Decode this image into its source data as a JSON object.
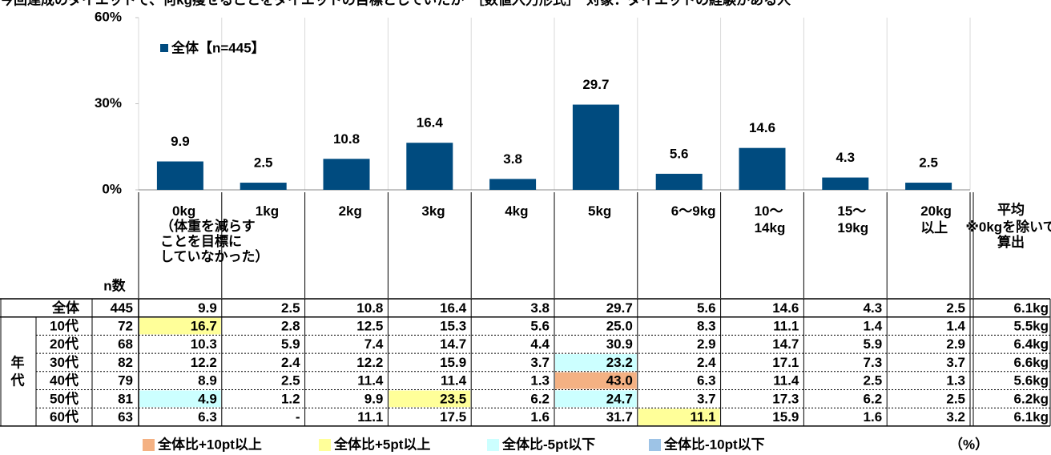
{
  "title": "今回達成のダイエットで、何kg痩せることをダイエットの目標としていたか　［数値入力形式］　対象：ダイエットの経験がある人",
  "chart_data": {
    "type": "bar",
    "categories": [
      "0kg",
      "1kg",
      "2kg",
      "3kg",
      "4kg",
      "5kg",
      "6〜9kg",
      "10〜\n14kg",
      "15〜\n19kg",
      "20kg\n以上"
    ],
    "series": [
      {
        "name": "全体【n=445】",
        "color": "#004b7f",
        "values": [
          9.9,
          2.5,
          10.8,
          16.4,
          3.8,
          29.7,
          5.6,
          14.6,
          4.3,
          2.5
        ]
      }
    ],
    "ylim": [
      0,
      60
    ],
    "yticks": [
      {
        "value": 0,
        "label": "0%"
      },
      {
        "value": 30,
        "label": "30%"
      },
      {
        "value": 60,
        "label": "60%"
      }
    ],
    "grid": true
  },
  "table": {
    "first_note": "（体重を減らす\nことを目標に\nしていなかった）",
    "n_header": "n数",
    "avg_header": "平均",
    "avg_note": "※0kgを除いて\n算出",
    "group_label": "年\n代",
    "rows": [
      {
        "label": "全体",
        "n": "445",
        "cells": [
          "9.9",
          "2.5",
          "10.8",
          "16.4",
          "3.8",
          "29.7",
          "5.6",
          "14.6",
          "4.3",
          "2.5"
        ],
        "avg": "6.1kg"
      },
      {
        "label": "10代",
        "n": "72",
        "cells": [
          "16.7",
          "2.8",
          "12.5",
          "15.3",
          "5.6",
          "25.0",
          "8.3",
          "11.1",
          "1.4",
          "1.4"
        ],
        "avg": "5.5kg"
      },
      {
        "label": "20代",
        "n": "68",
        "cells": [
          "10.3",
          "5.9",
          "7.4",
          "14.7",
          "4.4",
          "30.9",
          "2.9",
          "14.7",
          "5.9",
          "2.9"
        ],
        "avg": "6.4kg"
      },
      {
        "label": "30代",
        "n": "82",
        "cells": [
          "12.2",
          "2.4",
          "12.2",
          "15.9",
          "3.7",
          "23.2",
          "2.4",
          "17.1",
          "7.3",
          "3.7"
        ],
        "avg": "6.6kg"
      },
      {
        "label": "40代",
        "n": "79",
        "cells": [
          "8.9",
          "2.5",
          "11.4",
          "11.4",
          "1.3",
          "43.0",
          "6.3",
          "11.4",
          "2.5",
          "1.3"
        ],
        "avg": "5.6kg"
      },
      {
        "label": "50代",
        "n": "81",
        "cells": [
          "4.9",
          "1.2",
          "9.9",
          "23.5",
          "6.2",
          "24.7",
          "3.7",
          "17.3",
          "6.2",
          "2.5"
        ],
        "avg": "6.2kg"
      },
      {
        "label": "60代",
        "n": "63",
        "cells": [
          "6.3",
          "-",
          "11.1",
          "17.5",
          "1.6",
          "31.7",
          "11.1",
          "15.9",
          "1.6",
          "3.2"
        ],
        "avg": "6.1kg"
      }
    ],
    "legend": [
      {
        "label": "全体比+10pt以上",
        "color": "#f4b183"
      },
      {
        "label": "全体比+5pt以上",
        "color": "#ffff99"
      },
      {
        "label": "全体比-5pt以下",
        "color": "#ccffff"
      },
      {
        "label": "全体比-10pt以下",
        "color": "#9dc3e6"
      }
    ],
    "highlights": [
      {
        "row": 1,
        "col": 0,
        "legend": 1
      },
      {
        "row": 3,
        "col": 5,
        "legend": 2
      },
      {
        "row": 4,
        "col": 5,
        "legend": 0
      },
      {
        "row": 5,
        "col": 0,
        "legend": 2
      },
      {
        "row": 5,
        "col": 3,
        "legend": 1
      },
      {
        "row": 5,
        "col": 5,
        "legend": 2
      },
      {
        "row": 6,
        "col": 6,
        "legend": 1
      }
    ],
    "unit": "（%）"
  }
}
